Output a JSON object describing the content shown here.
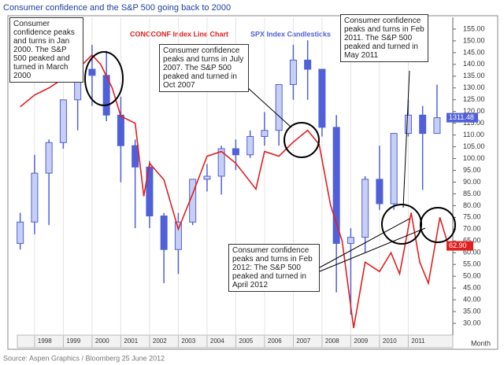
{
  "chart_data": {
    "type": "line-candlestick",
    "title": "Consumer confidence and the S&P 500 going back to 2000",
    "source": "Source: Aspen Graphics / Bloomberg 25 June 2012",
    "x_label": "Month",
    "xlim": [
      1997.4,
      2012.55
    ],
    "xticks": [
      1998,
      1999,
      2000,
      2001,
      2002,
      2003,
      2004,
      2005,
      2006,
      2007,
      2008,
      2009,
      2010,
      2011
    ],
    "ylim": [
      25,
      160
    ],
    "yticks": [
      {
        "value": 30,
        "label": "30.00"
      },
      {
        "value": 35,
        "label": "35.00"
      },
      {
        "value": 40,
        "label": "40.00"
      },
      {
        "value": 45,
        "label": "45.00"
      },
      {
        "value": 50,
        "label": "50.00"
      },
      {
        "value": 55,
        "label": "55.00"
      },
      {
        "value": 60,
        "label": "60.00"
      },
      {
        "value": 65,
        "label": "65.00"
      },
      {
        "value": 70,
        "label": "70.00"
      },
      {
        "value": 75,
        "label": "75.00"
      },
      {
        "value": 80,
        "label": "80.00"
      },
      {
        "value": 85,
        "label": "85.00"
      },
      {
        "value": 90,
        "label": "90.00"
      },
      {
        "value": 95,
        "label": "95.00"
      },
      {
        "value": 100,
        "label": "100.00"
      },
      {
        "value": 105,
        "label": "105.00"
      },
      {
        "value": 110,
        "label": "110.00"
      },
      {
        "value": 115,
        "label": "115.00"
      },
      {
        "value": 120,
        "label": "120.00"
      },
      {
        "value": 125,
        "label": "125.00"
      },
      {
        "value": 130,
        "label": "130.00"
      },
      {
        "value": 135,
        "label": "135.00"
      },
      {
        "value": 140,
        "label": "140.00"
      },
      {
        "value": 145,
        "label": "145.00"
      },
      {
        "value": 150,
        "label": "150.00"
      },
      {
        "value": 155,
        "label": "155.00"
      }
    ],
    "y2lim": [
      600,
      1640
    ],
    "grid": true,
    "line_series": {
      "name": "CONCCONF Index Line Chart",
      "color": "#e02020",
      "x": [
        1997.5,
        1998.0,
        1998.5,
        1999.0,
        1999.5,
        2000.0,
        2000.3,
        2000.7,
        2001.0,
        2001.5,
        2001.8,
        2002.0,
        2002.5,
        2003.0,
        2003.5,
        2004.0,
        2004.5,
        2005.0,
        2005.7,
        2006.0,
        2006.5,
        2007.0,
        2007.5,
        2007.9,
        2008.3,
        2008.7,
        2009.1,
        2009.5,
        2010.0,
        2010.4,
        2010.7,
        2011.1,
        2011.4,
        2011.7,
        2012.1,
        2012.4
      ],
      "values": [
        122,
        127,
        130,
        134,
        138,
        144,
        140,
        130,
        118,
        115,
        84,
        98,
        91,
        70,
        85,
        101,
        103,
        98,
        87,
        103,
        101,
        107,
        112,
        106,
        80,
        65,
        28,
        56,
        52,
        60,
        51,
        77,
        56,
        47,
        75,
        62.9
      ],
      "value_labels": [
        null,
        null,
        null,
        null,
        null,
        null,
        null,
        null,
        null,
        null,
        null,
        null,
        null,
        null,
        null,
        null,
        null,
        null,
        null,
        null,
        null,
        null,
        null,
        null,
        null,
        null,
        null,
        null,
        null,
        null,
        null,
        null,
        null,
        null,
        null,
        "62.90"
      ]
    },
    "candle_series": {
      "name": "SPX Index Candlesticks",
      "color": "#5060d8",
      "x": [
        1997.5,
        1998.0,
        1998.5,
        1999.0,
        1999.5,
        2000.0,
        2000.5,
        2001.0,
        2001.5,
        2002.0,
        2002.5,
        2003.0,
        2003.5,
        2004.0,
        2004.5,
        2005.0,
        2005.5,
        2006.0,
        2006.5,
        2007.0,
        2007.5,
        2008.0,
        2008.5,
        2009.0,
        2009.5,
        2010.0,
        2010.5,
        2011.0,
        2011.5,
        2012.0
      ],
      "open": [
        900,
        970,
        1130,
        1230,
        1370,
        1470,
        1450,
        1320,
        1220,
        1150,
        990,
        880,
        970,
        1110,
        1120,
        1210,
        1190,
        1250,
        1270,
        1420,
        1500,
        1470,
        1280,
        900,
        920,
        1110,
        1030,
        1260,
        1320,
        1260
      ],
      "high": [
        1000,
        1190,
        1240,
        1370,
        1470,
        1550,
        1530,
        1380,
        1240,
        1170,
        1000,
        1000,
        1110,
        1160,
        1220,
        1240,
        1270,
        1330,
        1420,
        1550,
        1565,
        1470,
        1320,
        950,
        1120,
        1220,
        1260,
        1370,
        1350,
        1420
      ],
      "low": [
        880,
        930,
        960,
        1210,
        1270,
        1350,
        1300,
        1100,
        950,
        950,
        770,
        800,
        960,
        1070,
        1060,
        1140,
        1180,
        1220,
        1220,
        1370,
        1370,
        1250,
        740,
        667,
        870,
        1010,
        1010,
        1250,
        1075,
        1260
      ],
      "close": [
        970,
        1130,
        1230,
        1370,
        1470,
        1450,
        1320,
        1220,
        1150,
        990,
        880,
        970,
        1110,
        1120,
        1210,
        1190,
        1250,
        1270,
        1420,
        1500,
        1470,
        1280,
        900,
        920,
        1110,
        1030,
        1260,
        1320,
        1260,
        1311.48
      ]
    },
    "annotations": [
      "Consumer confidence peaks and turns in Jan 2000. The S&P 500 peaked and turned in March 2000",
      "Consumer confidence peaks and turns in July 2007. The S&P 500 peaked and turned in Oct 2007",
      "Consumer confidence peaks and turns in Feb 2011. The S&P 500 peaked and turned in May 2011",
      "Consumer confidence peaks and turns in Feb 2012: The S&P 500 peaked and turned in April 2012"
    ]
  }
}
